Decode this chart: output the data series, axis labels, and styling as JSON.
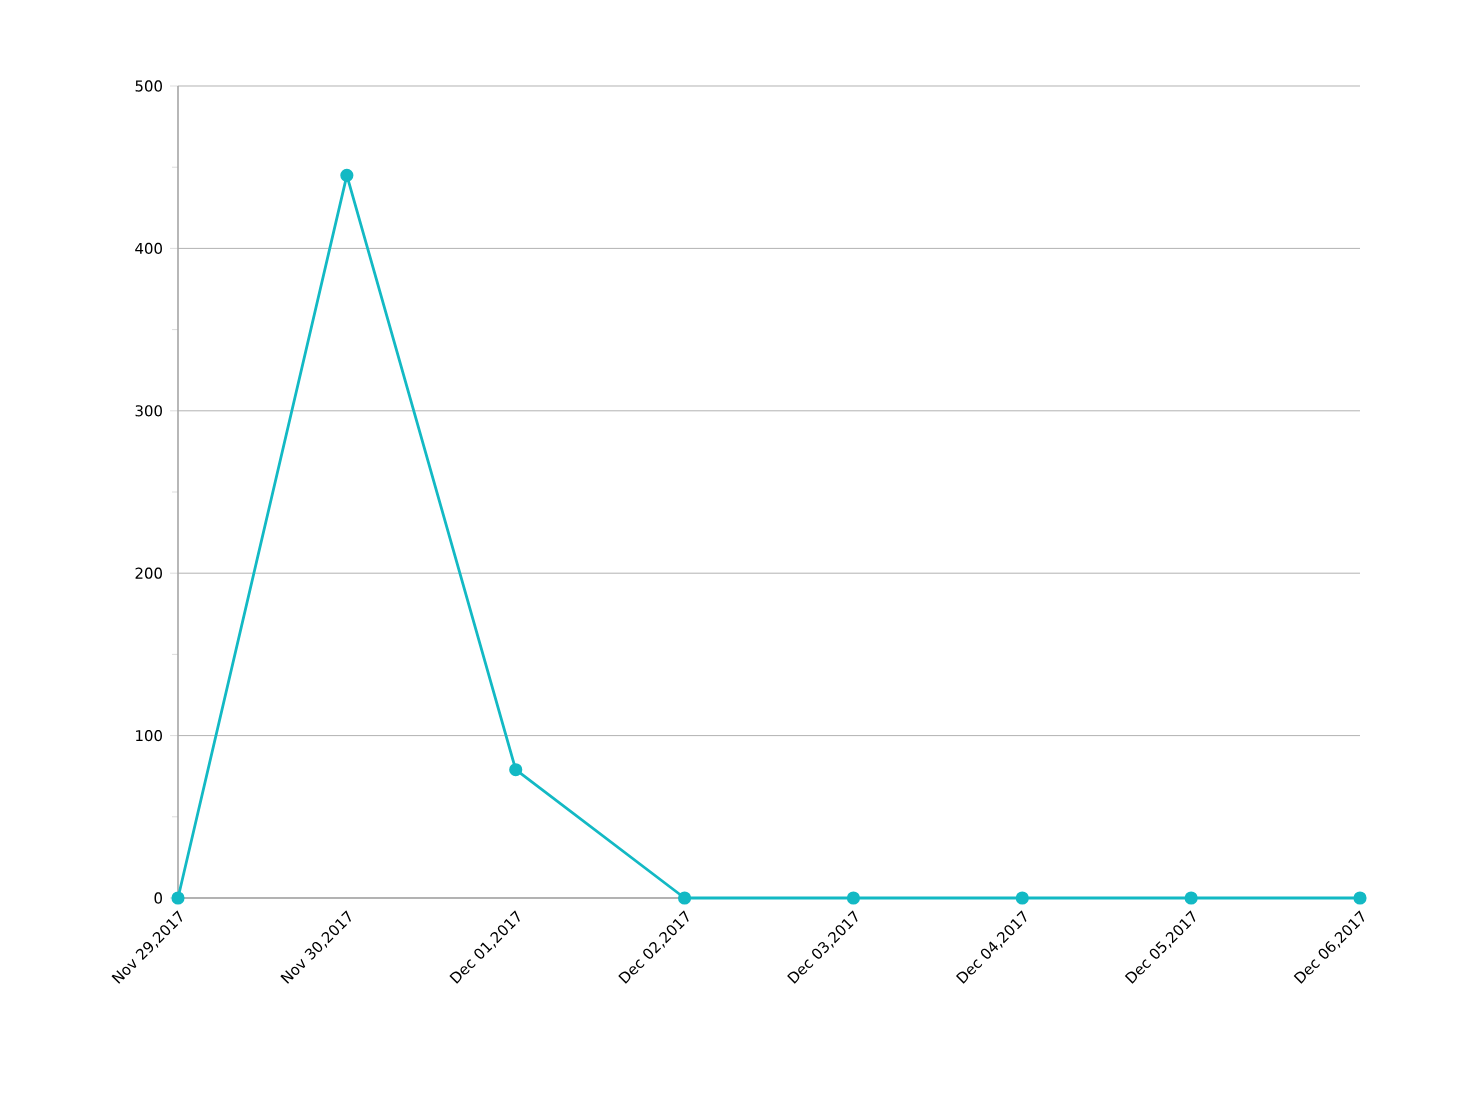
{
  "chart_data": {
    "type": "line",
    "categories": [
      "Nov 29,2017",
      "Nov 30,2017",
      "Dec 01,2017",
      "Dec 02,2017",
      "Dec 03,2017",
      "Dec 04,2017",
      "Dec 05,2017",
      "Dec 06,2017"
    ],
    "series": [
      {
        "color": "#13b9c4",
        "values": [
          0,
          445,
          79,
          0,
          0,
          0,
          0,
          0
        ]
      }
    ],
    "ylim": [
      0,
      500
    ],
    "yticks": [
      0,
      {
        "value": 50,
        "label": null
      },
      100,
      {
        "value": 150,
        "label": null
      },
      200,
      {
        "value": 250,
        "label": null
      },
      300,
      {
        "value": 350,
        "label": null
      },
      400,
      {
        "value": 450,
        "label": null
      },
      500
    ],
    "grid": "y",
    "marker": "circle",
    "line_style": "solid"
  }
}
